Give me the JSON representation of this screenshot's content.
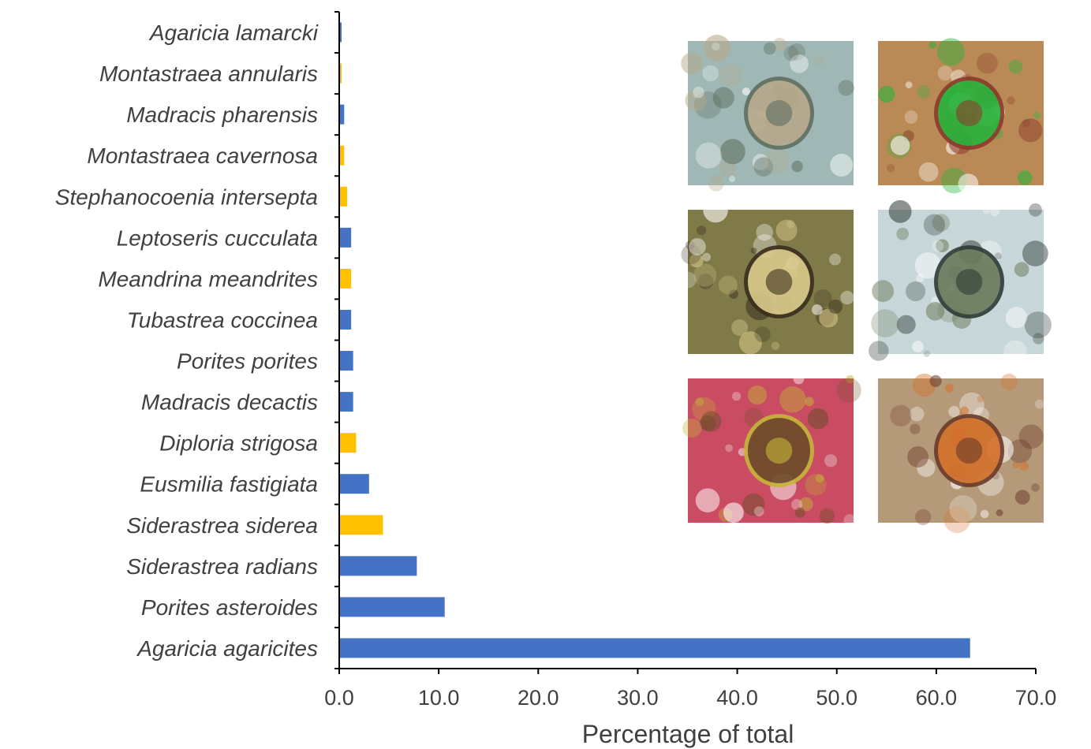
{
  "chart_data": {
    "type": "bar",
    "orientation": "horizontal",
    "title": "",
    "xlabel": "Percentage of total",
    "ylabel": "",
    "xlim": [
      0,
      70
    ],
    "x_ticks": [
      "0.0",
      "10.0",
      "20.0",
      "30.0",
      "40.0",
      "50.0",
      "60.0",
      "70.0"
    ],
    "grid": false,
    "legend": "none",
    "colors": {
      "blue": "#4472C4",
      "gold": "#FFC000",
      "axis": "#000000",
      "text": "#404040"
    },
    "categories": [
      "Agaricia lamarcki",
      "Montastraea annularis",
      "Madracis pharensis",
      "Montastraea cavernosa",
      "Stephanocoenia intersepta",
      "Leptoseris cucculata",
      "Meandrina meandrites",
      "Tubastrea coccinea",
      "Porites porites",
      "Madracis decactis",
      "Diploria strigosa",
      "Eusmilia fastigiata",
      "Siderastrea siderea",
      "Siderastrea radians",
      "Porites asteroides",
      "Agaricia agaricites"
    ],
    "values": [
      0.2,
      0.2,
      0.5,
      0.5,
      0.8,
      1.2,
      1.2,
      1.2,
      1.4,
      1.4,
      1.7,
      3.0,
      4.4,
      7.8,
      10.6,
      63.4
    ],
    "bar_colors": [
      "blue",
      "gold",
      "blue",
      "gold",
      "gold",
      "blue",
      "gold",
      "blue",
      "blue",
      "blue",
      "gold",
      "blue",
      "gold",
      "blue",
      "blue",
      "blue"
    ]
  },
  "photos": [
    {
      "name": "coral-photo-1",
      "bg": "#9fb8b6",
      "accent": "#b7a88a",
      "dark": "#5f6e60"
    },
    {
      "name": "coral-photo-2",
      "bg": "#b98a55",
      "accent": "#27b33b",
      "dark": "#8c3a2c"
    },
    {
      "name": "coral-photo-3",
      "bg": "#7f7a48",
      "accent": "#d8c98a",
      "dark": "#3b2f1e"
    },
    {
      "name": "coral-photo-4",
      "bg": "#c7d6d8",
      "accent": "#6b7a5b",
      "dark": "#2e3a35"
    },
    {
      "name": "coral-photo-5",
      "bg": "#c94c62",
      "accent": "#6e4d2a",
      "dark": "#c5b53a"
    },
    {
      "name": "coral-photo-6",
      "bg": "#b59a7a",
      "accent": "#d4702a",
      "dark": "#6b3a2a"
    }
  ]
}
